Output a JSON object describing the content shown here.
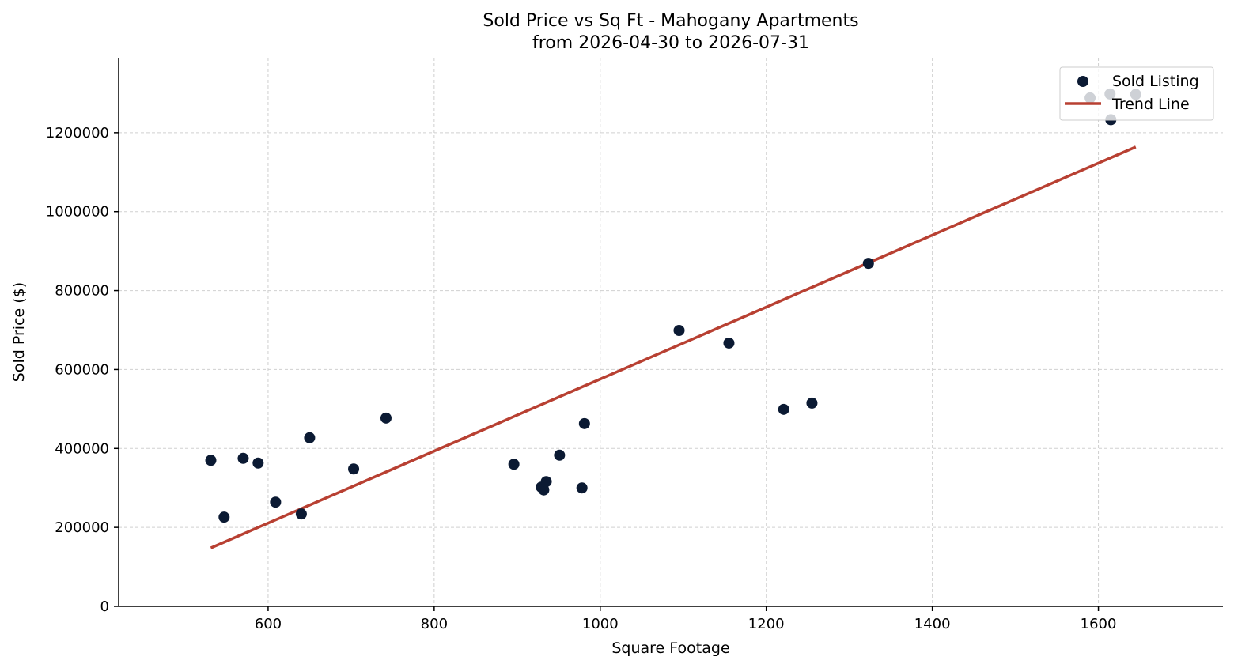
{
  "chart_data": {
    "type": "scatter",
    "title": "Sold Price vs Sq Ft - Mahogany Apartments",
    "subtitle": "from 2026-04-30 to 2026-07-31",
    "xlabel": "Square Footage",
    "ylabel": "Sold Price ($)",
    "xlim": [
      420,
      1750
    ],
    "ylim": [
      0,
      1390000
    ],
    "xticks": [
      600,
      800,
      1000,
      1200,
      1400,
      1600
    ],
    "yticks": [
      0,
      200000,
      400000,
      600000,
      800000,
      1000000,
      1200000
    ],
    "grid": true,
    "legend_position": "top-right",
    "legend": [
      {
        "label": "Sold Listing",
        "kind": "marker"
      },
      {
        "label": "Trend Line",
        "kind": "line"
      }
    ],
    "colors": {
      "points": "#0b1a33",
      "trend": "#b84032"
    },
    "series": [
      {
        "name": "Sold Listing",
        "kind": "scatter",
        "points": [
          [
            531,
            370000
          ],
          [
            547,
            226000
          ],
          [
            570,
            375000
          ],
          [
            588,
            363000
          ],
          [
            609,
            264000
          ],
          [
            640,
            234000
          ],
          [
            650,
            427000
          ],
          [
            703,
            348000
          ],
          [
            742,
            477000
          ],
          [
            896,
            360000
          ],
          [
            929,
            302000
          ],
          [
            932,
            295000
          ],
          [
            935,
            316000
          ],
          [
            951,
            383000
          ],
          [
            978,
            300000
          ],
          [
            981,
            463000
          ],
          [
            1095,
            699000
          ],
          [
            1155,
            667000
          ],
          [
            1221,
            499000
          ],
          [
            1255,
            515000
          ],
          [
            1323,
            869000
          ],
          [
            1590,
            1288000
          ],
          [
            1614,
            1298000
          ],
          [
            1615,
            1233000
          ],
          [
            1645,
            1297000
          ]
        ]
      },
      {
        "name": "Trend Line",
        "kind": "line",
        "points": [
          [
            531,
            148000
          ],
          [
            1645,
            1164000
          ]
        ]
      }
    ]
  }
}
